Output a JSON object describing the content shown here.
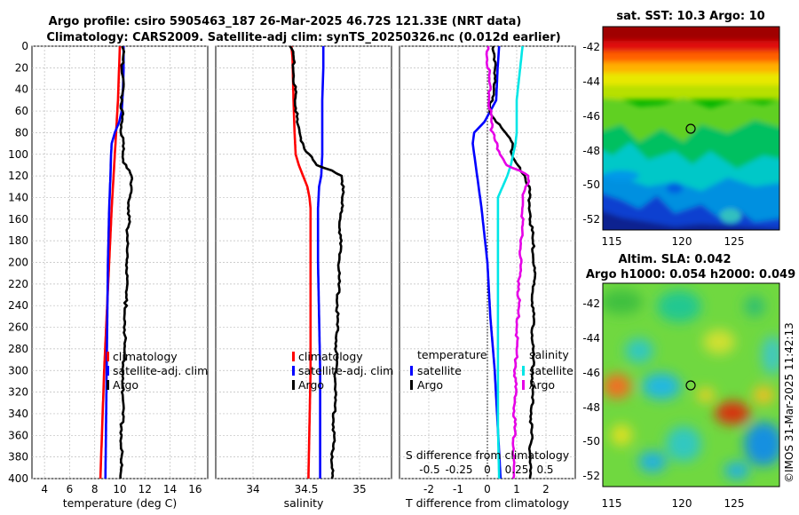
{
  "figure": {
    "title_line1": "Argo profile: csiro 5905463_187 26-Mar-2025 46.72S 121.33E (NRT data)",
    "title_line2": "Climatology: CARS2009. Satellite-adj clim: synTS_20250326.nc (0.012d earlier)",
    "copyright": "©IMOS 31-Mar-2025 11:42:13"
  },
  "chart_data": [
    {
      "id": "temperature-profile",
      "type": "line",
      "xlabel": "temperature (deg C)",
      "ylabel": "depth",
      "xlim": [
        3,
        17
      ],
      "ylim": [
        0,
        400
      ],
      "x_ticks": [
        4,
        6,
        8,
        10,
        12,
        14,
        16
      ],
      "y_ticks": [
        0,
        20,
        40,
        60,
        80,
        100,
        120,
        140,
        160,
        180,
        200,
        220,
        240,
        260,
        280,
        300,
        320,
        340,
        360,
        380,
        400
      ],
      "series": [
        {
          "name": "climatology",
          "color": "#ff0000",
          "depth": [
            0,
            50,
            100,
            150,
            200,
            250,
            300,
            350,
            400
          ],
          "values": [
            10.0,
            9.85,
            9.6,
            9.35,
            9.15,
            8.95,
            8.75,
            8.6,
            8.45
          ]
        },
        {
          "name": "satellite-adj. clim",
          "color": "#0000ff",
          "depth": [
            0,
            20,
            40,
            60,
            70,
            80,
            90,
            100,
            120,
            150,
            200,
            250,
            300,
            350,
            400
          ],
          "values": [
            10.3,
            10.3,
            10.25,
            10.15,
            9.95,
            9.6,
            9.35,
            9.3,
            9.25,
            9.15,
            9.05,
            9.0,
            8.95,
            8.9,
            8.85
          ]
        },
        {
          "name": "Argo",
          "color": "#000000",
          "depth": [
            0,
            10,
            20,
            30,
            40,
            50,
            60,
            70,
            80,
            90,
            100,
            110,
            120,
            125,
            130,
            140,
            150,
            160,
            170,
            180,
            190,
            200,
            220,
            240,
            260,
            280,
            300,
            320,
            340,
            360,
            380,
            400
          ],
          "values": [
            10.2,
            10.25,
            10.2,
            10.25,
            10.2,
            10.2,
            10.15,
            10.2,
            10.15,
            10.2,
            10.25,
            10.4,
            10.9,
            10.95,
            10.9,
            10.8,
            10.75,
            10.7,
            10.65,
            10.6,
            10.55,
            10.6,
            10.5,
            10.45,
            10.4,
            10.35,
            10.3,
            10.25,
            10.2,
            10.15,
            10.1,
            10.05
          ]
        }
      ],
      "legend": [
        "climatology",
        "satellite-adj. clim",
        "Argo"
      ]
    },
    {
      "id": "salinity-profile",
      "type": "line",
      "xlabel": "salinity",
      "ylabel": "depth",
      "xlim": [
        33.65,
        35.3
      ],
      "ylim": [
        0,
        400
      ],
      "x_ticks": [
        34,
        34.5,
        35
      ],
      "series": [
        {
          "name": "climatology",
          "color": "#ff0000",
          "depth": [
            0,
            10,
            50,
            80,
            100,
            110,
            120,
            130,
            140,
            150,
            200,
            250,
            300,
            350,
            400
          ],
          "values": [
            34.36,
            34.37,
            34.38,
            34.39,
            34.4,
            34.43,
            34.47,
            34.51,
            34.53,
            34.54,
            34.54,
            34.54,
            34.54,
            34.53,
            34.52
          ]
        },
        {
          "name": "satellite-adj. clim",
          "color": "#0000ff",
          "depth": [
            0,
            20,
            50,
            100,
            120,
            130,
            150,
            200,
            250,
            300,
            350,
            400
          ],
          "values": [
            34.66,
            34.66,
            34.65,
            34.65,
            34.64,
            34.62,
            34.61,
            34.61,
            34.62,
            34.63,
            34.63,
            34.63
          ]
        },
        {
          "name": "Argo",
          "color": "#000000",
          "depth": [
            0,
            10,
            50,
            70,
            80,
            90,
            100,
            110,
            115,
            120,
            125,
            130,
            150,
            200,
            250,
            300,
            350,
            400
          ],
          "values": [
            34.35,
            34.38,
            34.4,
            34.41,
            34.43,
            34.47,
            34.52,
            34.6,
            34.75,
            34.82,
            34.84,
            34.84,
            34.83,
            34.81,
            34.79,
            34.78,
            34.76,
            34.74
          ]
        }
      ],
      "legend": [
        "climatology",
        "satellite-adj. clim",
        "Argo"
      ]
    },
    {
      "id": "difference-profile",
      "type": "line",
      "xlabel": "T difference from climatology",
      "xlabel_top": "S difference from climatology",
      "xlim": [
        -3,
        3
      ],
      "ylim": [
        0,
        400
      ],
      "x_ticks": [
        -2,
        -1,
        0,
        1,
        2
      ],
      "x_ticks_top": [
        "-0.5",
        "-0.25",
        "0",
        "0.25",
        "0.5"
      ],
      "legend_temperature_title": "temperature",
      "legend_salinity_title": "salinity",
      "series": [
        {
          "name": "satellite",
          "group": "temperature",
          "color": "#0000ff",
          "depth": [
            0,
            20,
            50,
            70,
            80,
            90,
            100,
            150,
            200,
            250,
            300,
            350,
            400
          ],
          "values": [
            0.4,
            0.35,
            0.3,
            -0.1,
            -0.45,
            -0.5,
            -0.45,
            -0.2,
            0.0,
            0.1,
            0.25,
            0.35,
            0.45
          ]
        },
        {
          "name": "Argo",
          "group": "temperature",
          "color": "#000000",
          "depth": [
            0,
            20,
            40,
            60,
            70,
            80,
            90,
            100,
            110,
            120,
            130,
            150,
            200,
            250,
            300,
            350,
            400
          ],
          "values": [
            0.2,
            0.3,
            0.2,
            0.1,
            0.3,
            0.6,
            0.9,
            0.8,
            1.0,
            1.3,
            1.4,
            1.45,
            1.6,
            1.55,
            1.55,
            1.5,
            1.45
          ]
        },
        {
          "name": "satellite",
          "group": "salinity",
          "color": "#00e6e6",
          "depth": [
            0,
            20,
            50,
            80,
            90,
            100,
            110,
            120,
            140,
            200,
            250,
            300,
            350,
            400
          ],
          "values": [
            0.3,
            0.28,
            0.25,
            0.25,
            0.24,
            0.22,
            0.2,
            0.17,
            0.09,
            0.09,
            0.09,
            0.09,
            0.09,
            0.1
          ]
        },
        {
          "name": "Argo",
          "group": "salinity",
          "color": "#e600e6",
          "depth": [
            0,
            50,
            80,
            100,
            110,
            115,
            120,
            125,
            130,
            150,
            200,
            250,
            300,
            350,
            400
          ],
          "values": [
            0.0,
            0.02,
            0.04,
            0.11,
            0.17,
            0.27,
            0.35,
            0.35,
            0.32,
            0.3,
            0.28,
            0.26,
            0.24,
            0.23,
            0.22
          ]
        }
      ]
    },
    {
      "id": "sst-map",
      "type": "heatmap",
      "title": "sat. SST: 10.3 Argo: 10",
      "x_ticks": [
        "115",
        "120",
        "125"
      ],
      "y_ticks": [
        "-42",
        "-44",
        "-46",
        "-48",
        "-50",
        "-52"
      ],
      "marker": {
        "lon": 121.33,
        "lat": -46.72
      }
    },
    {
      "id": "sla-map",
      "type": "heatmap",
      "title_line1": "Altim. SLA: 0.042",
      "title_line2": "Argo h1000: 0.054 h2000: 0.049",
      "x_ticks": [
        "115",
        "120",
        "125"
      ],
      "y_ticks": [
        "-42",
        "-44",
        "-46",
        "-48",
        "-50",
        "-52"
      ],
      "marker": {
        "lon": 121.33,
        "lat": -46.72
      }
    }
  ]
}
